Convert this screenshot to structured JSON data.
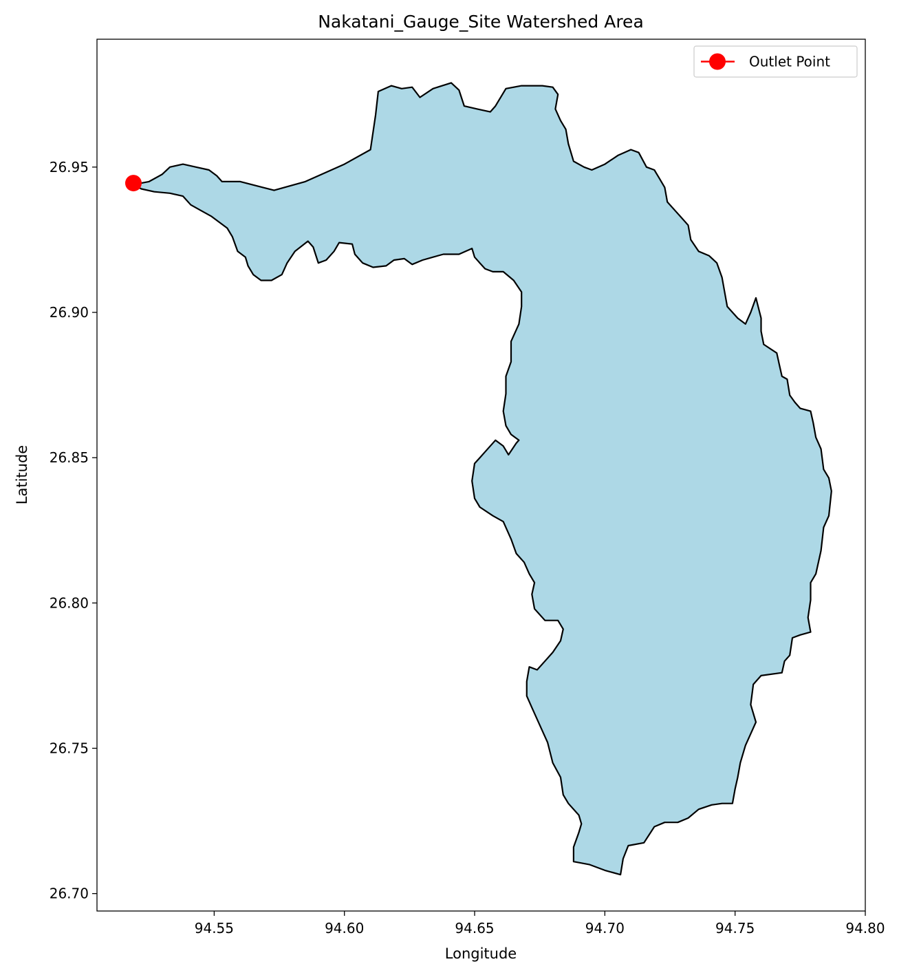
{
  "chart_data": {
    "type": "map",
    "title": "Nakatani_Gauge_Site Watershed Area",
    "xlabel": "Longitude",
    "ylabel": "Latitude",
    "xlim": [
      94.505,
      94.8
    ],
    "ylim": [
      26.694,
      26.994
    ],
    "xticks": [
      94.55,
      94.6,
      94.65,
      94.7,
      94.75,
      94.8
    ],
    "xtick_labels": [
      "94.55",
      "94.60",
      "94.65",
      "94.70",
      "94.75",
      "94.80"
    ],
    "yticks": [
      26.7,
      26.75,
      26.8,
      26.85,
      26.9,
      26.95
    ],
    "ytick_labels": [
      "26.70",
      "26.75",
      "26.80",
      "26.85",
      "26.90",
      "26.95"
    ],
    "grid": false,
    "legend": {
      "position": "top-right",
      "entries": [
        "Outlet Point"
      ]
    },
    "watershed": {
      "fill": "#add8e6",
      "edge": "#000000",
      "boundary": [
        [
          94.522,
          26.9445
        ],
        [
          94.525,
          26.945
        ],
        [
          94.53,
          26.9475
        ],
        [
          94.533,
          26.95
        ],
        [
          94.538,
          26.951
        ],
        [
          94.543,
          26.95
        ],
        [
          94.548,
          26.949
        ],
        [
          94.551,
          26.947
        ],
        [
          94.553,
          26.945
        ],
        [
          94.56,
          26.945
        ],
        [
          94.573,
          26.942
        ],
        [
          94.585,
          26.945
        ],
        [
          94.6,
          26.951
        ],
        [
          94.61,
          26.956
        ],
        [
          94.612,
          26.968
        ],
        [
          94.613,
          26.976
        ],
        [
          94.618,
          26.978
        ],
        [
          94.622,
          26.977
        ],
        [
          94.626,
          26.9775
        ],
        [
          94.629,
          26.974
        ],
        [
          94.634,
          26.977
        ],
        [
          94.641,
          26.979
        ],
        [
          94.644,
          26.9765
        ],
        [
          94.646,
          26.971
        ],
        [
          94.651,
          26.97
        ],
        [
          94.656,
          26.969
        ],
        [
          94.658,
          26.971
        ],
        [
          94.662,
          26.977
        ],
        [
          94.668,
          26.978
        ],
        [
          94.676,
          26.978
        ],
        [
          94.68,
          26.9775
        ],
        [
          94.682,
          26.975
        ],
        [
          94.681,
          26.97
        ],
        [
          94.683,
          26.966
        ],
        [
          94.685,
          26.963
        ],
        [
          94.686,
          26.958
        ],
        [
          94.688,
          26.952
        ],
        [
          94.692,
          26.95
        ],
        [
          94.695,
          26.949
        ],
        [
          94.7,
          26.951
        ],
        [
          94.705,
          26.954
        ],
        [
          94.71,
          26.956
        ],
        [
          94.713,
          26.955
        ],
        [
          94.716,
          26.95
        ],
        [
          94.719,
          26.949
        ],
        [
          94.721,
          26.946
        ],
        [
          94.723,
          26.943
        ],
        [
          94.724,
          26.938
        ],
        [
          94.727,
          26.935
        ],
        [
          94.729,
          26.933
        ],
        [
          94.732,
          26.93
        ],
        [
          94.733,
          26.925
        ],
        [
          94.736,
          26.921
        ],
        [
          94.74,
          26.9195
        ],
        [
          94.743,
          26.917
        ],
        [
          94.745,
          26.912
        ],
        [
          94.746,
          26.907
        ],
        [
          94.747,
          26.902
        ],
        [
          94.751,
          26.898
        ],
        [
          94.754,
          26.896
        ],
        [
          94.756,
          26.9
        ],
        [
          94.758,
          26.905
        ],
        [
          94.76,
          26.898
        ],
        [
          94.76,
          26.8935
        ],
        [
          94.761,
          26.889
        ],
        [
          94.766,
          26.886
        ],
        [
          94.767,
          26.882
        ],
        [
          94.768,
          26.878
        ],
        [
          94.77,
          26.877
        ],
        [
          94.771,
          26.8715
        ],
        [
          94.773,
          26.869
        ],
        [
          94.775,
          26.867
        ],
        [
          94.779,
          26.866
        ],
        [
          94.78,
          26.862
        ],
        [
          94.781,
          26.857
        ],
        [
          94.783,
          26.853
        ],
        [
          94.784,
          26.846
        ],
        [
          94.786,
          26.843
        ],
        [
          94.787,
          26.8385
        ],
        [
          94.786,
          26.83
        ],
        [
          94.784,
          26.826
        ],
        [
          94.783,
          26.818
        ],
        [
          94.781,
          26.81
        ],
        [
          94.779,
          26.807
        ],
        [
          94.779,
          26.801
        ],
        [
          94.778,
          26.795
        ],
        [
          94.779,
          26.79
        ],
        [
          94.775,
          26.789
        ],
        [
          94.772,
          26.788
        ],
        [
          94.771,
          26.782
        ],
        [
          94.769,
          26.78
        ],
        [
          94.768,
          26.776
        ],
        [
          94.76,
          26.775
        ],
        [
          94.757,
          26.772
        ],
        [
          94.756,
          26.765
        ],
        [
          94.758,
          26.759
        ],
        [
          94.756,
          26.755
        ],
        [
          94.754,
          26.751
        ],
        [
          94.752,
          26.745
        ],
        [
          94.751,
          26.74
        ],
        [
          94.75,
          26.736
        ],
        [
          94.749,
          26.731
        ],
        [
          94.745,
          26.731
        ],
        [
          94.741,
          26.7305
        ],
        [
          94.736,
          26.729
        ],
        [
          94.732,
          26.726
        ],
        [
          94.728,
          26.7245
        ],
        [
          94.723,
          26.7245
        ],
        [
          94.719,
          26.723
        ],
        [
          94.715,
          26.7175
        ],
        [
          94.709,
          26.7165
        ],
        [
          94.707,
          26.712
        ],
        [
          94.706,
          26.7065
        ],
        [
          94.7,
          26.708
        ],
        [
          94.694,
          26.71
        ],
        [
          94.688,
          26.711
        ],
        [
          94.688,
          26.716
        ],
        [
          94.69,
          26.721
        ],
        [
          94.691,
          26.724
        ],
        [
          94.69,
          26.727
        ],
        [
          94.686,
          26.731
        ],
        [
          94.684,
          26.734
        ],
        [
          94.683,
          26.74
        ],
        [
          94.68,
          26.745
        ],
        [
          94.678,
          26.752
        ],
        [
          94.676,
          26.756
        ],
        [
          94.674,
          26.76
        ],
        [
          94.672,
          26.764
        ],
        [
          94.67,
          26.768
        ],
        [
          94.67,
          26.773
        ],
        [
          94.671,
          26.778
        ],
        [
          94.674,
          26.777
        ],
        [
          94.677,
          26.78
        ],
        [
          94.68,
          26.783
        ],
        [
          94.683,
          26.787
        ],
        [
          94.684,
          26.791
        ],
        [
          94.682,
          26.794
        ],
        [
          94.677,
          26.794
        ],
        [
          94.673,
          26.798
        ],
        [
          94.672,
          26.803
        ],
        [
          94.673,
          26.807
        ],
        [
          94.671,
          26.81
        ],
        [
          94.669,
          26.814
        ],
        [
          94.666,
          26.817
        ],
        [
          94.664,
          26.822
        ],
        [
          94.661,
          26.828
        ],
        [
          94.657,
          26.83
        ],
        [
          94.652,
          26.833
        ],
        [
          94.65,
          26.836
        ],
        [
          94.649,
          26.842
        ],
        [
          94.65,
          26.848
        ],
        [
          94.652,
          26.85
        ],
        [
          94.654,
          26.852
        ],
        [
          94.658,
          26.856
        ],
        [
          94.661,
          26.854
        ],
        [
          94.663,
          26.851
        ],
        [
          94.666,
          26.855
        ],
        [
          94.667,
          26.856
        ],
        [
          94.664,
          26.858
        ],
        [
          94.662,
          26.861
        ],
        [
          94.661,
          26.866
        ],
        [
          94.662,
          26.872
        ],
        [
          94.662,
          26.878
        ],
        [
          94.664,
          26.883
        ],
        [
          94.664,
          26.89
        ],
        [
          94.667,
          26.896
        ],
        [
          94.668,
          26.902
        ],
        [
          94.668,
          26.907
        ],
        [
          94.665,
          26.911
        ],
        [
          94.661,
          26.914
        ],
        [
          94.657,
          26.914
        ],
        [
          94.654,
          26.915
        ],
        [
          94.652,
          26.917
        ],
        [
          94.65,
          26.919
        ],
        [
          94.649,
          26.922
        ],
        [
          94.644,
          26.92
        ],
        [
          94.638,
          26.92
        ],
        [
          94.634,
          26.919
        ],
        [
          94.63,
          26.918
        ],
        [
          94.626,
          26.9165
        ],
        [
          94.623,
          26.9185
        ],
        [
          94.619,
          26.918
        ],
        [
          94.616,
          26.916
        ],
        [
          94.611,
          26.9155
        ],
        [
          94.607,
          26.917
        ],
        [
          94.604,
          26.92
        ],
        [
          94.603,
          26.9235
        ],
        [
          94.598,
          26.924
        ],
        [
          94.596,
          26.921
        ],
        [
          94.593,
          26.918
        ],
        [
          94.59,
          26.917
        ],
        [
          94.588,
          26.9225
        ],
        [
          94.586,
          26.9245
        ],
        [
          94.581,
          26.921
        ],
        [
          94.578,
          26.917
        ],
        [
          94.576,
          26.913
        ],
        [
          94.572,
          26.911
        ],
        [
          94.568,
          26.911
        ],
        [
          94.565,
          26.913
        ],
        [
          94.563,
          26.916
        ],
        [
          94.562,
          26.919
        ],
        [
          94.559,
          26.921
        ],
        [
          94.557,
          26.926
        ],
        [
          94.555,
          26.929
        ],
        [
          94.552,
          26.931
        ],
        [
          94.549,
          26.933
        ],
        [
          94.545,
          26.935
        ],
        [
          94.541,
          26.937
        ],
        [
          94.538,
          26.94
        ],
        [
          94.533,
          26.941
        ],
        [
          94.527,
          26.9415
        ],
        [
          94.522,
          26.9425
        ],
        [
          94.519,
          26.944
        ]
      ]
    },
    "outlet_point": {
      "lon": 94.519,
      "lat": 26.9445,
      "label": "Outlet Point",
      "color": "#ff0000"
    }
  }
}
